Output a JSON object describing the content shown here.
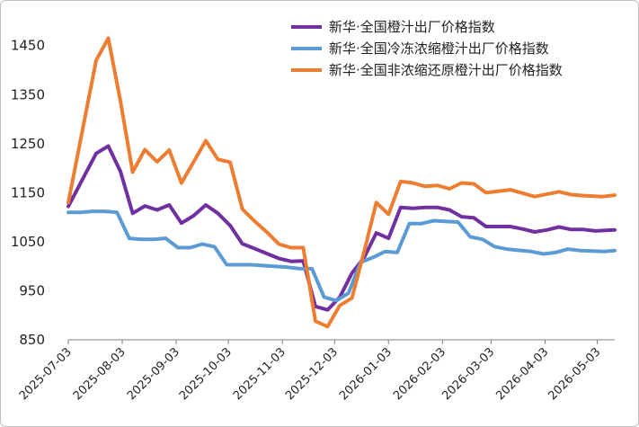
{
  "chart_data": {
    "type": "line",
    "title": "",
    "xlabel": "",
    "ylabel": "",
    "ylim": [
      850,
      1510
    ],
    "y_ticks": [
      850,
      950,
      1050,
      1150,
      1250,
      1350,
      1450
    ],
    "x_tick_labels": [
      "2025-07-03",
      "2025-08-03",
      "2025-09-03",
      "2025-10-03",
      "2025-11-03",
      "2025-12-03",
      "2026-01-03",
      "2026-02-03",
      "2026-03-03",
      "2026-04-03",
      "2026-05-03"
    ],
    "x_range": [
      "2025-07-03",
      "2026-05-13"
    ],
    "legend_position": "top-right",
    "grid": false,
    "series": [
      {
        "name": "新华·全国橙汁出厂价格指数",
        "color": "#7030a0",
        "points": [
          [
            "2025-07-03",
            1122
          ],
          [
            "2025-07-19",
            1230
          ],
          [
            "2025-07-26",
            1245
          ],
          [
            "2025-08-02",
            1193
          ],
          [
            "2025-08-09",
            1108
          ],
          [
            "2025-08-16",
            1123
          ],
          [
            "2025-08-23",
            1115
          ],
          [
            "2025-08-30",
            1125
          ],
          [
            "2025-09-06",
            1088
          ],
          [
            "2025-09-13",
            1103
          ],
          [
            "2025-09-20",
            1125
          ],
          [
            "2025-09-27",
            1108
          ],
          [
            "2025-10-04",
            1083
          ],
          [
            "2025-10-11",
            1046
          ],
          [
            "2025-10-18",
            1036
          ],
          [
            "2025-10-25",
            1026
          ],
          [
            "2025-11-01",
            1016
          ],
          [
            "2025-11-08",
            1010
          ],
          [
            "2025-11-15",
            1011
          ],
          [
            "2025-11-22",
            918
          ],
          [
            "2025-11-29",
            911
          ],
          [
            "2025-12-06",
            937
          ],
          [
            "2025-12-13",
            986
          ],
          [
            "2025-12-20",
            1018
          ],
          [
            "2025-12-27",
            1068
          ],
          [
            "2026-01-03",
            1057
          ],
          [
            "2026-01-10",
            1120
          ],
          [
            "2026-01-17",
            1118
          ],
          [
            "2026-01-24",
            1120
          ],
          [
            "2026-01-31",
            1120
          ],
          [
            "2026-02-07",
            1115
          ],
          [
            "2026-02-14",
            1101
          ],
          [
            "2026-02-21",
            1099
          ],
          [
            "2026-02-28",
            1081
          ],
          [
            "2026-03-14",
            1081
          ],
          [
            "2026-03-21",
            1076
          ],
          [
            "2026-03-28",
            1070
          ],
          [
            "2026-04-04",
            1074
          ],
          [
            "2026-04-11",
            1080
          ],
          [
            "2026-04-18",
            1075
          ],
          [
            "2026-04-25",
            1075
          ],
          [
            "2026-05-02",
            1072
          ],
          [
            "2026-05-13",
            1074
          ]
        ]
      },
      {
        "name": "新华·全国冷冻浓缩橙汁出厂价格指数",
        "color": "#5b9bd5",
        "points": [
          [
            "2025-07-03",
            1110
          ],
          [
            "2025-07-10",
            1110
          ],
          [
            "2025-07-17",
            1112
          ],
          [
            "2025-07-24",
            1112
          ],
          [
            "2025-07-31",
            1110
          ],
          [
            "2025-08-07",
            1057
          ],
          [
            "2025-08-14",
            1055
          ],
          [
            "2025-08-21",
            1055
          ],
          [
            "2025-08-28",
            1057
          ],
          [
            "2025-09-04",
            1038
          ],
          [
            "2025-09-11",
            1038
          ],
          [
            "2025-09-18",
            1045
          ],
          [
            "2025-09-25",
            1040
          ],
          [
            "2025-10-02",
            1003
          ],
          [
            "2025-10-16",
            1003
          ],
          [
            "2025-11-06",
            998
          ],
          [
            "2025-11-13",
            995
          ],
          [
            "2025-11-20",
            995
          ],
          [
            "2025-11-27",
            937
          ],
          [
            "2025-12-04",
            930
          ],
          [
            "2025-12-11",
            945
          ],
          [
            "2025-12-18",
            1008
          ],
          [
            "2025-12-25",
            1018
          ],
          [
            "2026-01-01",
            1030
          ],
          [
            "2026-01-08",
            1028
          ],
          [
            "2026-01-15",
            1087
          ],
          [
            "2026-01-22",
            1087
          ],
          [
            "2026-01-29",
            1093
          ],
          [
            "2026-02-12",
            1090
          ],
          [
            "2026-02-19",
            1060
          ],
          [
            "2026-02-26",
            1055
          ],
          [
            "2026-03-05",
            1040
          ],
          [
            "2026-03-12",
            1035
          ],
          [
            "2026-03-26",
            1030
          ],
          [
            "2026-04-02",
            1025
          ],
          [
            "2026-04-09",
            1028
          ],
          [
            "2026-04-16",
            1035
          ],
          [
            "2026-04-23",
            1032
          ],
          [
            "2026-05-07",
            1030
          ],
          [
            "2026-05-13",
            1032
          ]
        ]
      },
      {
        "name": "新华·全国非浓缩还原橙汁出厂价格指数",
        "color": "#ed7d31",
        "points": [
          [
            "2025-07-03",
            1130
          ],
          [
            "2025-07-19",
            1420
          ],
          [
            "2025-07-26",
            1465
          ],
          [
            "2025-08-02",
            1336
          ],
          [
            "2025-08-09",
            1192
          ],
          [
            "2025-08-16",
            1238
          ],
          [
            "2025-08-23",
            1213
          ],
          [
            "2025-08-30",
            1237
          ],
          [
            "2025-09-06",
            1170
          ],
          [
            "2025-09-20",
            1256
          ],
          [
            "2025-09-27",
            1218
          ],
          [
            "2025-10-04",
            1212
          ],
          [
            "2025-10-11",
            1117
          ],
          [
            "2025-10-18",
            1092
          ],
          [
            "2025-10-25",
            1070
          ],
          [
            "2025-11-01",
            1045
          ],
          [
            "2025-11-08",
            1038
          ],
          [
            "2025-11-15",
            1038
          ],
          [
            "2025-11-22",
            888
          ],
          [
            "2025-11-29",
            877
          ],
          [
            "2025-12-06",
            920
          ],
          [
            "2025-12-13",
            935
          ],
          [
            "2025-12-20",
            1030
          ],
          [
            "2025-12-27",
            1130
          ],
          [
            "2026-01-03",
            1106
          ],
          [
            "2026-01-10",
            1173
          ],
          [
            "2026-01-17",
            1170
          ],
          [
            "2026-01-24",
            1163
          ],
          [
            "2026-01-31",
            1165
          ],
          [
            "2026-02-07",
            1158
          ],
          [
            "2026-02-14",
            1170
          ],
          [
            "2026-02-21",
            1168
          ],
          [
            "2026-02-28",
            1150
          ],
          [
            "2026-03-14",
            1156
          ],
          [
            "2026-03-28",
            1142
          ],
          [
            "2026-04-11",
            1152
          ],
          [
            "2026-04-18",
            1146
          ],
          [
            "2026-04-25",
            1144
          ],
          [
            "2026-05-06",
            1142
          ],
          [
            "2026-05-13",
            1145
          ]
        ]
      }
    ]
  }
}
